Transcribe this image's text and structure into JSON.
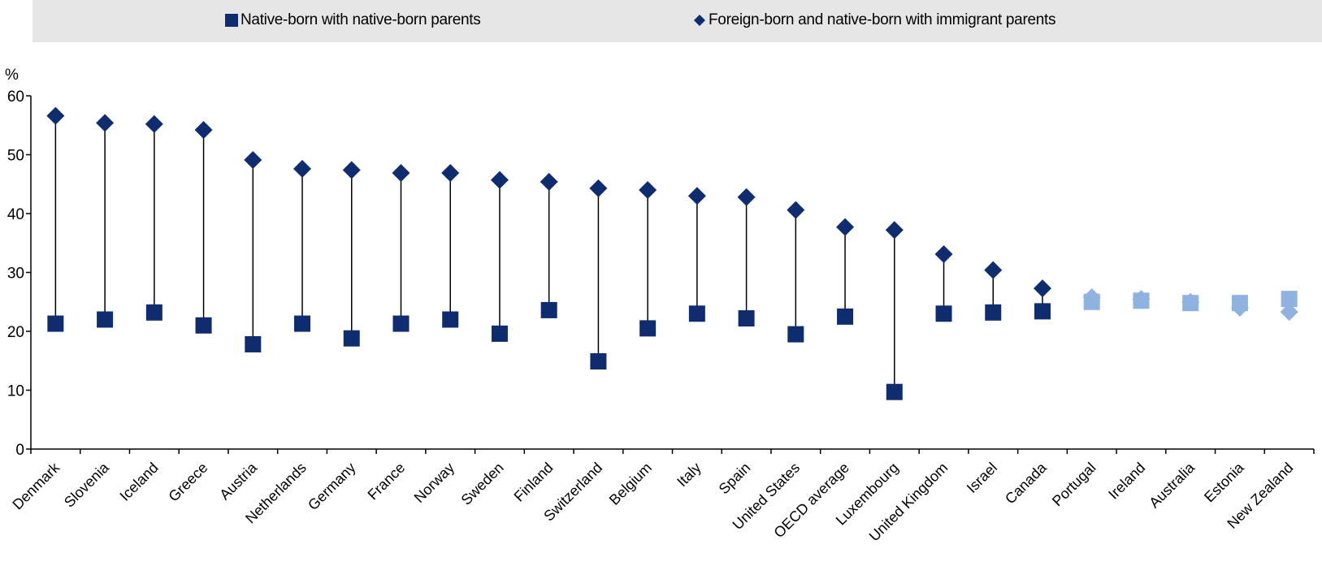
{
  "legend": {
    "series1": "Native-born with native-born parents",
    "series2": "Foreign-born and native-born with immigrant parents"
  },
  "colors": {
    "primary": "#0f2d6e",
    "highlight": "#8fb2e0",
    "axis": "#000000",
    "legend_bg": "#e6e6e6"
  },
  "chart_data": {
    "type": "scatter",
    "ylabel": "%",
    "ylim": [
      0,
      60
    ],
    "yticks": [
      0,
      10,
      20,
      30,
      40,
      50,
      60
    ],
    "categories": [
      "Denmark",
      "Slovenia",
      "Iceland",
      "Greece",
      "Austria",
      "Netherlands",
      "Germany",
      "France",
      "Norway",
      "Sweden",
      "Finland",
      "Switzerland",
      "Belgium",
      "Italy",
      "Spain",
      "United States",
      "OECD average",
      "Luxembourg",
      "United Kingdom",
      "Israel",
      "Canada",
      "Portugal",
      "Ireland",
      "Australia",
      "Estonia",
      "New Zealand"
    ],
    "highlighted_categories": [
      "Portugal",
      "Ireland",
      "Australia",
      "Estonia",
      "New Zealand"
    ],
    "series": [
      {
        "name": "Native-born with native-born parents",
        "marker": "square",
        "values": [
          21.3,
          22.0,
          23.2,
          21.0,
          17.8,
          21.3,
          18.8,
          21.3,
          22.0,
          19.6,
          23.6,
          14.9,
          20.5,
          23.0,
          22.2,
          19.5,
          22.5,
          9.7,
          23.0,
          23.2,
          23.4,
          25.0,
          25.2,
          24.8,
          24.8,
          25.5
        ]
      },
      {
        "name": "Foreign-born and native-born with immigrant parents",
        "marker": "diamond",
        "values": [
          56.6,
          55.4,
          55.2,
          54.2,
          49.1,
          47.6,
          47.4,
          46.9,
          46.9,
          45.7,
          45.4,
          44.3,
          44.0,
          43.0,
          42.8,
          40.6,
          37.7,
          37.2,
          33.1,
          30.4,
          27.3,
          25.8,
          25.5,
          25.0,
          24.0,
          23.3
        ]
      }
    ]
  }
}
